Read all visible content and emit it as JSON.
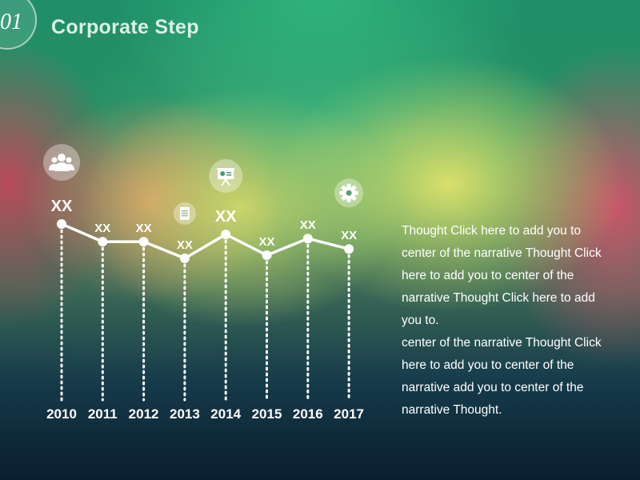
{
  "slide": {
    "number": "01",
    "title": "Corporate Step"
  },
  "colors": {
    "line": "#ffffff",
    "icon_circle": "rgba(255,255,255,0.35)"
  },
  "chart_data": {
    "type": "line",
    "categories": [
      "2010",
      "2011",
      "2012",
      "2013",
      "2014",
      "2015",
      "2016",
      "2017"
    ],
    "values": [
      5,
      3.3,
      3.3,
      1.7,
      4,
      2,
      3.6,
      2.6
    ],
    "data_labels": [
      "XX",
      "XX",
      "XX",
      "XX",
      "XX",
      "XX",
      "XX",
      "XX"
    ],
    "icons": [
      {
        "category": "2010",
        "name": "people-icon"
      },
      {
        "category": "2013",
        "name": "document-icon"
      },
      {
        "category": "2014",
        "name": "presentation-icon"
      },
      {
        "category": "2017",
        "name": "gear-icon"
      }
    ],
    "xlabel": "",
    "ylabel": "",
    "grid": false,
    "legend": "none"
  },
  "narrative": {
    "paragraph1": "Thought Click here to add you to center of the narrative Thought Click here to add you to center of the narrative Thought Click here to add you to.",
    "paragraph2": " center of the narrative Thought Click here to add you to center of the narrative add you to center of the narrative Thought."
  }
}
